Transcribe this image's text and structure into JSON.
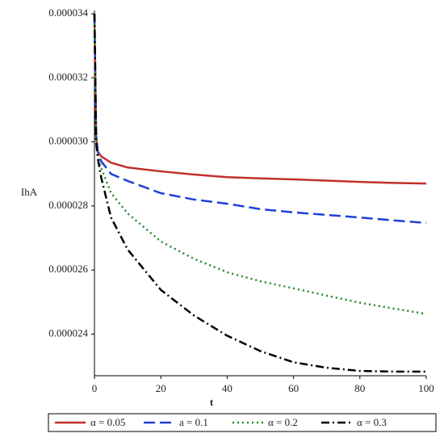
{
  "chart_data": {
    "type": "line",
    "xlabel": "t",
    "ylabel": "IhA",
    "x": [
      0,
      0.5,
      1,
      2,
      5,
      10,
      20,
      30,
      40,
      50,
      60,
      70,
      80,
      90,
      100
    ],
    "series": [
      {
        "name": "α = 0.05",
        "color": "#c0302a",
        "line_style": "solid",
        "values": [
          3.4e-05,
          3.02e-05,
          2.97e-05,
          2.955e-05,
          2.935e-05,
          2.92e-05,
          2.908e-05,
          2.898e-05,
          2.89e-05,
          2.886e-05,
          2.883e-05,
          2.879e-05,
          2.875e-05,
          2.872e-05,
          2.87e-05
        ]
      },
      {
        "name": "a = 0.1",
        "color": "#1f3fd6",
        "line_style": "dashed",
        "values": [
          3.4e-05,
          3.02e-05,
          2.97e-05,
          2.94e-05,
          2.9e-05,
          2.878e-05,
          2.84e-05,
          2.82e-05,
          2.807e-05,
          2.79e-05,
          2.78e-05,
          2.772e-05,
          2.764e-05,
          2.755e-05,
          2.747e-05
        ]
      },
      {
        "name": "α = 0.2",
        "color": "#22882a",
        "line_style": "dotted",
        "values": [
          3.4e-05,
          3.01e-05,
          2.96e-05,
          2.92e-05,
          2.84e-05,
          2.777e-05,
          2.689e-05,
          2.635e-05,
          2.593e-05,
          2.565e-05,
          2.543e-05,
          2.52e-05,
          2.498e-05,
          2.48e-05,
          2.463e-05
        ]
      },
      {
        "name": "α = 0.3",
        "color": "#000000",
        "line_style": "dashdot",
        "values": [
          3.4e-05,
          3e-05,
          2.95e-05,
          2.89e-05,
          2.764e-05,
          2.664e-05,
          2.538e-05,
          2.458e-05,
          2.395e-05,
          2.347e-05,
          2.312e-05,
          2.295e-05,
          2.285e-05,
          2.283e-05,
          2.283e-05
        ]
      }
    ],
    "xlim": [
      0,
      100
    ],
    "xticks": [
      0,
      20,
      40,
      60,
      80,
      100
    ],
    "ylim": [
      2.27e-05,
      3.4e-05
    ],
    "yticks": [
      2.4e-05,
      2.6e-05,
      2.8e-05,
      {
        "value": 3e-05,
        "label": "0.000030"
      },
      3.2e-05,
      3.4e-05
    ],
    "legend": "bottom",
    "grid": false
  }
}
